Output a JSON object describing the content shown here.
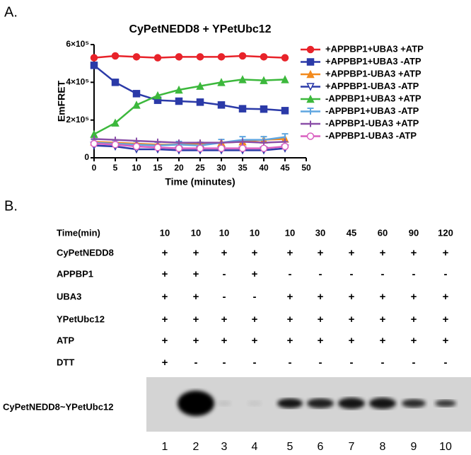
{
  "panel_a_label": "A.",
  "chart_data": {
    "type": "line",
    "title": "CyPetNEDD8 + YPetUbc12",
    "x_label": "Time (minutes)",
    "y_label": "EmFRET",
    "x": [
      0,
      5,
      10,
      15,
      20,
      25,
      30,
      35,
      40,
      45
    ],
    "xlim": [
      0,
      50
    ],
    "xticks": [
      0,
      5,
      10,
      15,
      20,
      25,
      30,
      35,
      40,
      45,
      50
    ],
    "ylim": [
      0,
      600000
    ],
    "yticks": [
      0,
      {
        "value": 200000,
        "label": "2×10⁵"
      },
      {
        "value": 400000,
        "label": "4×10⁵"
      },
      {
        "value": 600000,
        "label": "6×10⁵"
      }
    ],
    "legend": "right",
    "series": [
      {
        "name": "+APPBP1+UBA3 +ATP",
        "color": "#e8232a",
        "marker": "circle",
        "values": [
          530000,
          540000,
          535000,
          530000,
          535000,
          535000,
          535000,
          540000,
          535000,
          530000
        ]
      },
      {
        "name": "+APPBP1+UBA3 -ATP",
        "color": "#2b3aa8",
        "marker": "square",
        "values": [
          490000,
          400000,
          340000,
          305000,
          300000,
          295000,
          280000,
          260000,
          258000,
          250000
        ]
      },
      {
        "name": "+APPBP1-UBA3 +ATP",
        "color": "#f28a1e",
        "marker": "triangle",
        "values": [
          85000,
          80000,
          75000,
          70000,
          70000,
          75000,
          80000,
          85000,
          95000,
          100000
        ]
      },
      {
        "name": "+APPBP1-UBA3 -ATP",
        "color": "#2b3aa8",
        "marker": "triangle-down-open",
        "values": [
          65000,
          60000,
          45000,
          45000,
          40000,
          40000,
          40000,
          40000,
          40000,
          50000
        ]
      },
      {
        "name": "-APPBP1+UBA3 +ATP",
        "color": "#3cb83c",
        "marker": "triangle",
        "values": [
          125000,
          185000,
          280000,
          330000,
          360000,
          380000,
          400000,
          415000,
          410000,
          415000
        ]
      },
      {
        "name": "-APPBP1+UBA3 -ATP",
        "color": "#5fa6e0",
        "marker": "tee",
        "values": [
          80000,
          75000,
          70000,
          65000,
          70000,
          65000,
          80000,
          95000,
          95000,
          110000
        ]
      },
      {
        "name": "-APPBP1-UBA3 +ATP",
        "color": "#8a4fa8",
        "marker": "cross",
        "values": [
          100000,
          95000,
          90000,
          85000,
          80000,
          80000,
          80000,
          85000,
          80000,
          85000
        ]
      },
      {
        "name": "-APPBP1-UBA3 -ATP",
        "color": "#d95fc0",
        "marker": "circle-open",
        "values": [
          75000,
          70000,
          60000,
          55000,
          50000,
          50000,
          50000,
          50000,
          50000,
          60000
        ]
      }
    ]
  },
  "panel_b": {
    "label": "B.",
    "rows": [
      {
        "label": "Time(min)",
        "cells": [
          10,
          10,
          10,
          10,
          10,
          30,
          45,
          60,
          90,
          120
        ]
      },
      {
        "label": "CyPetNEDD8",
        "cells": [
          "+",
          "+",
          "+",
          "+",
          "+",
          "+",
          "+",
          "+",
          "+",
          "+"
        ]
      },
      {
        "label": "APPBP1",
        "cells": [
          "+",
          "+",
          "-",
          "+",
          "-",
          "-",
          "-",
          "-",
          "-",
          "-"
        ]
      },
      {
        "label": "UBA3",
        "cells": [
          "+",
          "+",
          "-",
          "-",
          "+",
          "+",
          "+",
          "+",
          "+",
          "+"
        ]
      },
      {
        "label": "YPetUbc12",
        "cells": [
          "+",
          "+",
          "+",
          "+",
          "+",
          "+",
          "+",
          "+",
          "+",
          "+"
        ]
      },
      {
        "label": "ATP",
        "cells": [
          "+",
          "+",
          "+",
          "+",
          "+",
          "+",
          "+",
          "+",
          "+",
          "+"
        ]
      },
      {
        "label": "DTT",
        "cells": [
          "+",
          "-",
          "-",
          "-",
          "-",
          "-",
          "-",
          "-",
          "-",
          "-"
        ]
      }
    ],
    "blot_label": "CyPetNEDD8~YPetUbc12",
    "lanes": [
      1,
      2,
      3,
      4,
      5,
      6,
      7,
      8,
      9,
      10
    ]
  }
}
